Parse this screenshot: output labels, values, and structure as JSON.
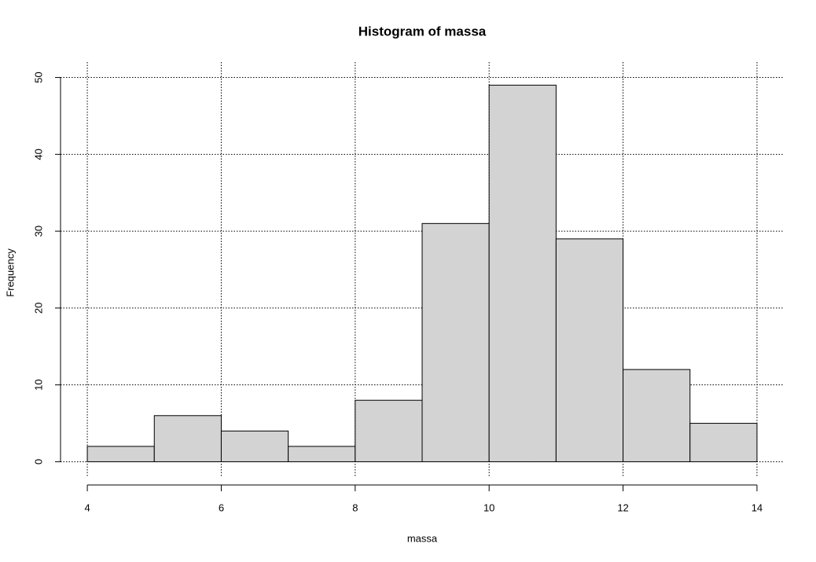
{
  "chart_data": {
    "type": "histogram",
    "title": "Histogram of massa",
    "x_label": "massa",
    "y_label": "Frequency",
    "bins": [
      4,
      5,
      6,
      7,
      8,
      9,
      10,
      11,
      12,
      13,
      14
    ],
    "values": [
      2,
      6,
      4,
      2,
      8,
      31,
      49,
      29,
      12,
      5
    ],
    "color": "#d3d3d3",
    "xlim": [
      3.6,
      14.4
    ],
    "ylim": [
      -2,
      52
    ],
    "xticks": [
      4,
      6,
      8,
      10,
      12,
      14
    ],
    "yticks": [
      0,
      10,
      20,
      30,
      40,
      50
    ],
    "grid": true
  }
}
